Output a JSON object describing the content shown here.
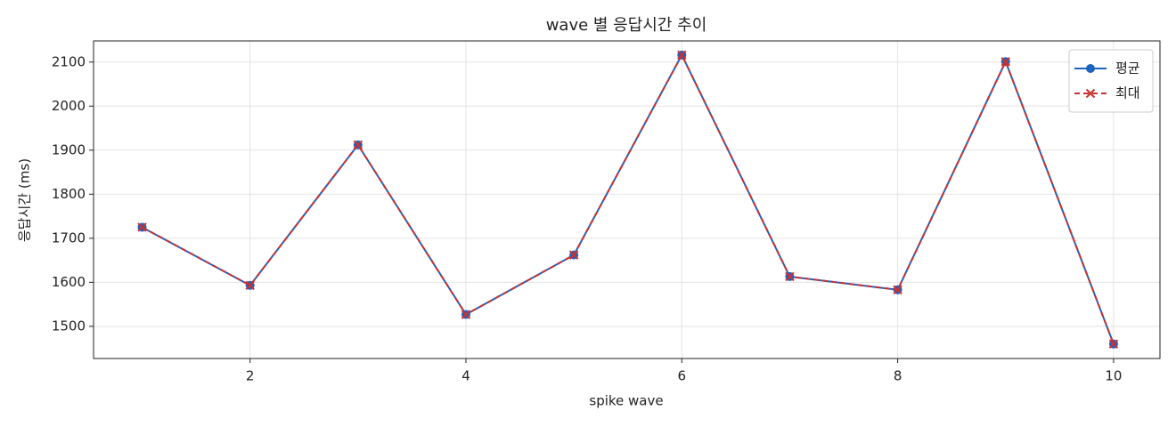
{
  "chart_data": {
    "type": "line",
    "title": "wave 별 응답시간 추이",
    "x_label": "spike wave",
    "y_label": "응답시간 (ms)",
    "x": [
      1,
      2,
      3,
      4,
      5,
      6,
      7,
      8,
      9,
      10
    ],
    "series": [
      {
        "name": "평균",
        "color": "#1f63c0",
        "marker": "circle",
        "dashed": false,
        "values": [
          1725,
          1593,
          1912,
          1527,
          1662,
          2116,
          1613,
          1583,
          2101,
          1460
        ]
      },
      {
        "name": "최대",
        "color": "#c83232",
        "marker": "x",
        "dashed": true,
        "values": [
          1725,
          1593,
          1912,
          1527,
          1662,
          2116,
          1613,
          1583,
          2101,
          1460
        ]
      }
    ],
    "xlim": [
      0.55,
      10.43
    ],
    "xticks": [
      2,
      4,
      6,
      8,
      10
    ],
    "ylim": [
      1427,
      2148
    ],
    "yticks": [
      1500,
      1600,
      1700,
      1800,
      1900,
      2000,
      2100
    ],
    "grid": true,
    "legend": "upper-right"
  }
}
